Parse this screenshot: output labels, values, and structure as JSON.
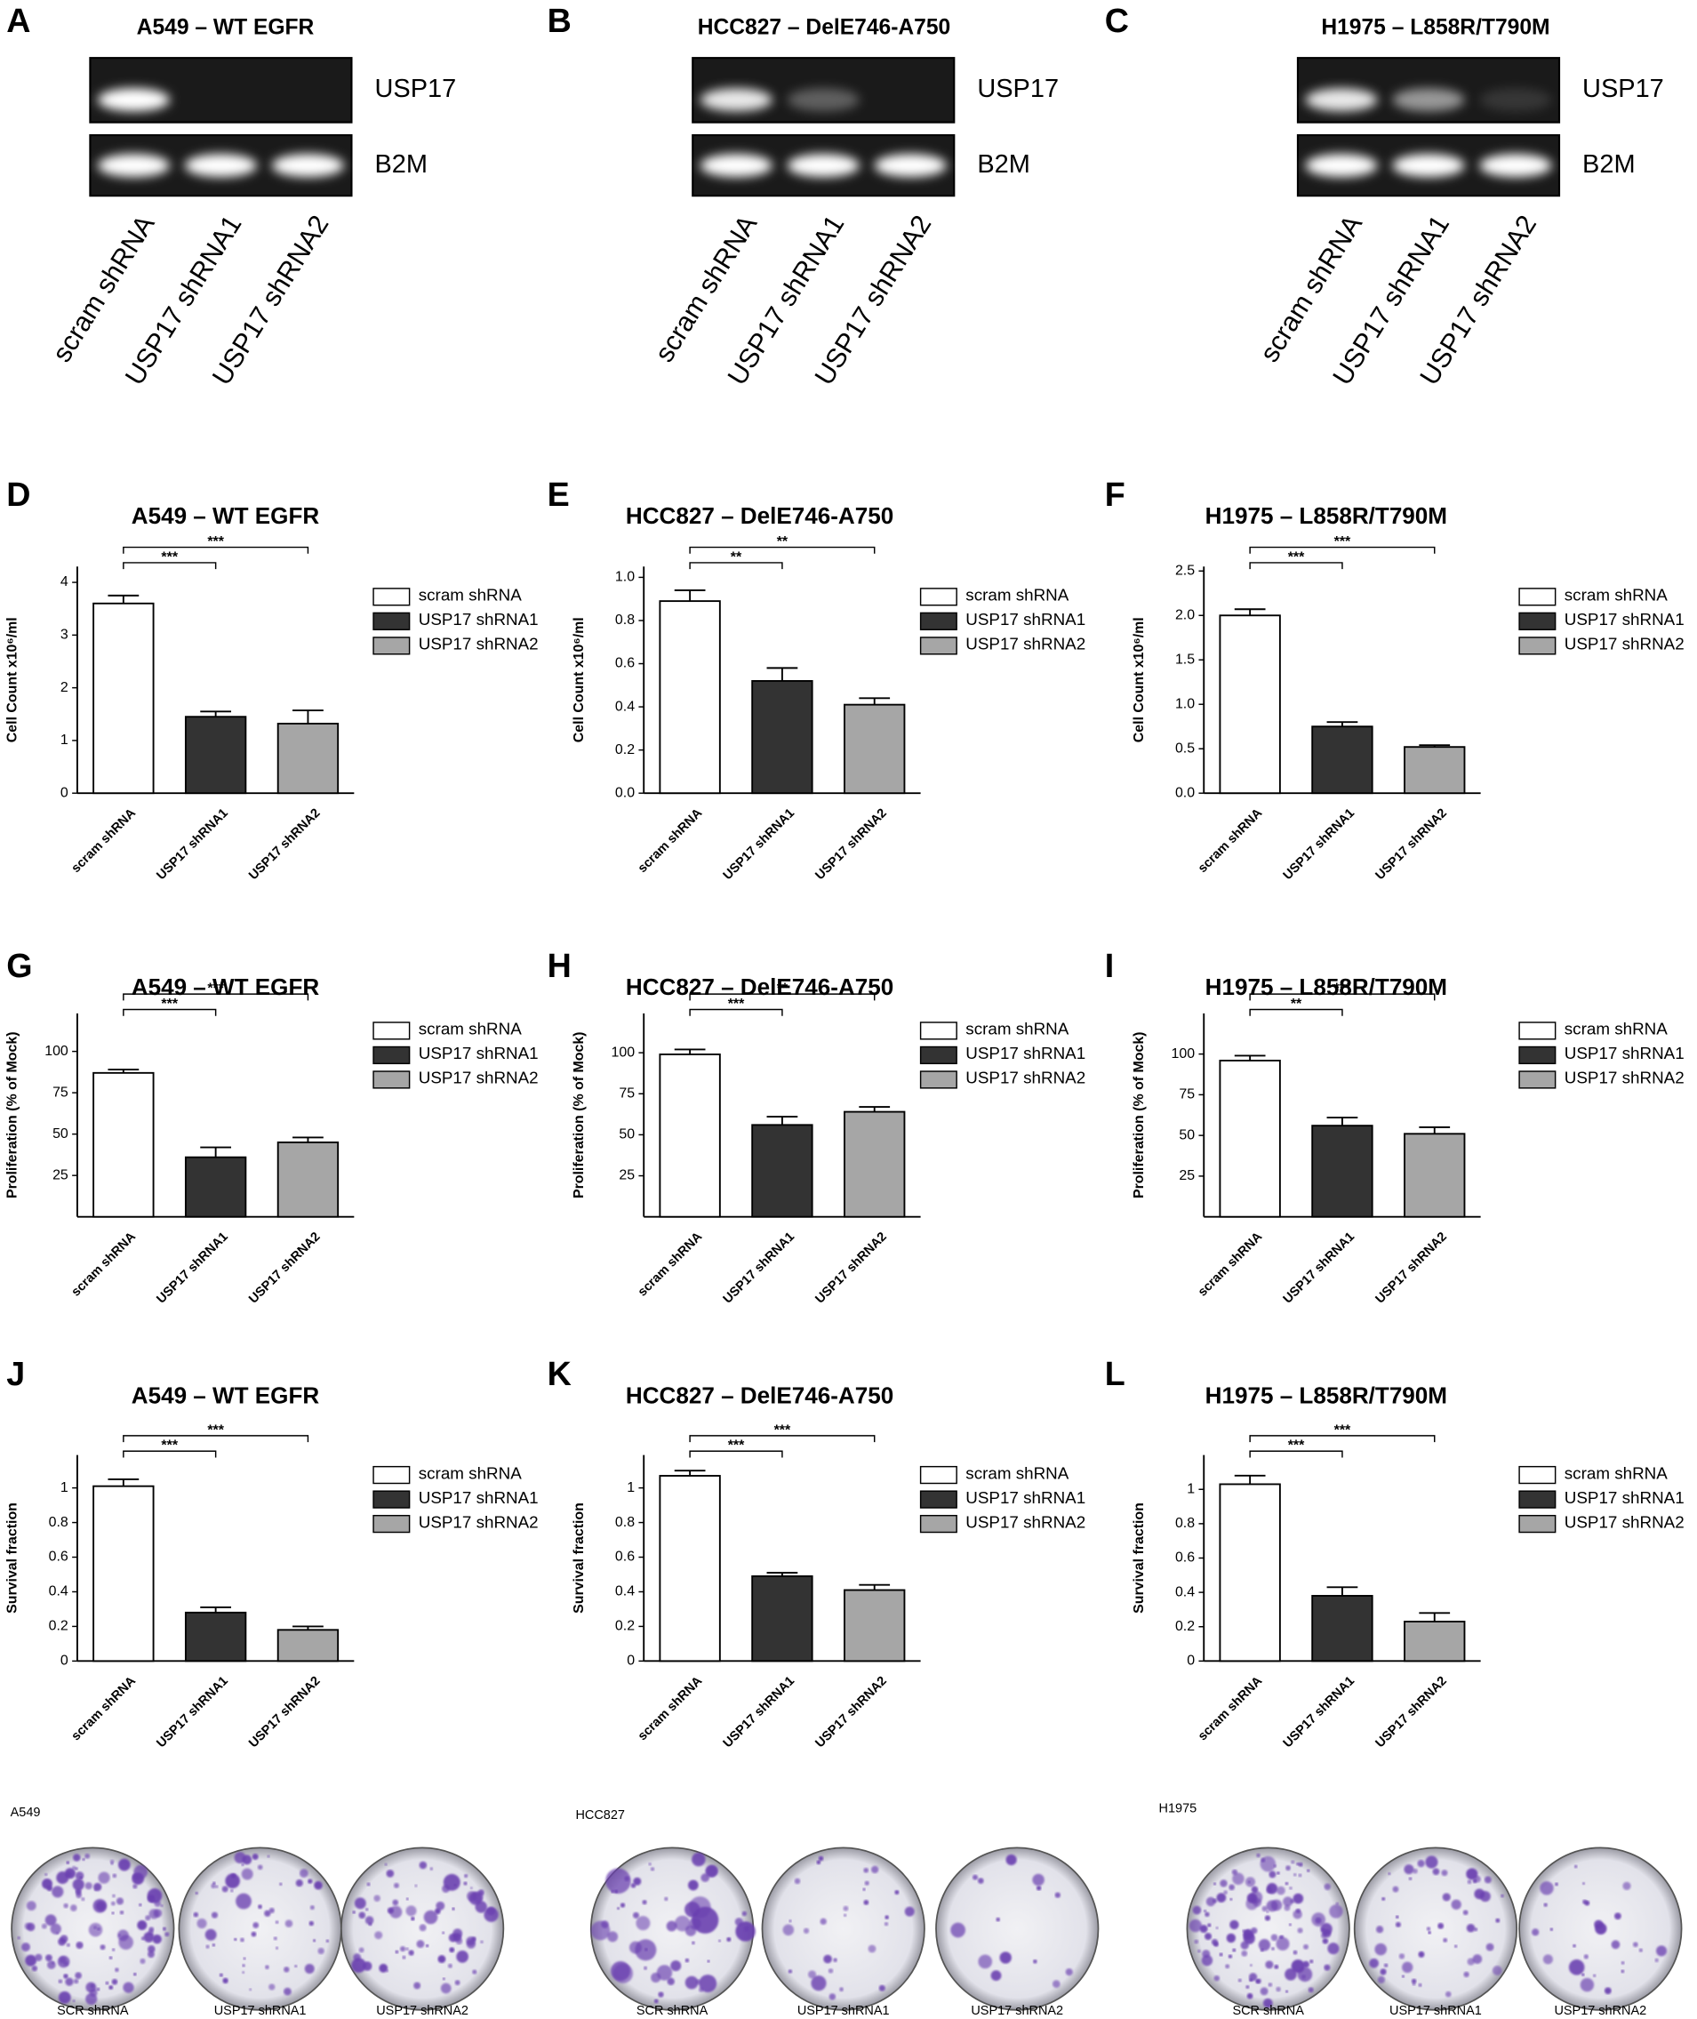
{
  "gels": [
    {
      "letter": "A",
      "title": "A549 – WT EGFR",
      "bands": [
        "USP17",
        "B2M"
      ],
      "lanes": [
        "scram shRNA",
        "USP17 shRNA1",
        "USP17 shRNA2"
      ]
    },
    {
      "letter": "B",
      "title": "HCC827 – DelE746-A750",
      "bands": [
        "USP17",
        "B2M"
      ],
      "lanes": [
        "scram shRNA",
        "USP17 shRNA1",
        "USP17 shRNA2"
      ]
    },
    {
      "letter": "C",
      "title": "H1975 – L858R/T790M",
      "bands": [
        "USP17",
        "B2M"
      ],
      "lanes": [
        "scram shRNA",
        "USP17 shRNA1",
        "USP17 shRNA2"
      ]
    }
  ],
  "chart_data": [
    {
      "letter": "D",
      "type": "bar",
      "title": "A549 – WT EGFR",
      "y_label": "Cell Count x10⁶/ml",
      "categories": [
        "scram shRNA",
        "USP17 shRNA1",
        "USP17 shRNA2"
      ],
      "values": [
        3.6,
        1.45,
        1.32
      ],
      "errors": [
        0.15,
        0.1,
        0.25
      ],
      "colors": [
        "#ffffff",
        "#333333",
        "#a6a6a6"
      ],
      "ylim": [
        0,
        4.3
      ],
      "yticks": [
        0,
        1,
        2,
        3,
        4
      ],
      "significance": [
        "***",
        "***"
      ]
    },
    {
      "letter": "E",
      "type": "bar",
      "title": "HCC827 – DelE746-A750",
      "y_label": "Cell Count x10⁶/ml",
      "categories": [
        "scram shRNA",
        "USP17 shRNA1",
        "USP17 shRNA2"
      ],
      "values": [
        0.89,
        0.52,
        0.41
      ],
      "errors": [
        0.05,
        0.06,
        0.03
      ],
      "colors": [
        "#ffffff",
        "#333333",
        "#a6a6a6"
      ],
      "ylim": [
        0,
        1.05
      ],
      "yticks": [
        {
          "value": 0,
          "label": "0.0"
        },
        0.2,
        0.4,
        0.6,
        0.8,
        {
          "value": 1,
          "label": "1.0"
        }
      ],
      "significance": [
        "**",
        "**"
      ]
    },
    {
      "letter": "F",
      "type": "bar",
      "title": "H1975 – L858R/T790M",
      "y_label": "Cell Count x10⁶/ml",
      "categories": [
        "scram shRNA",
        "USP17 shRNA1",
        "USP17 shRNA2"
      ],
      "values": [
        2.0,
        0.75,
        0.52
      ],
      "errors": [
        0.07,
        0.05,
        0.02
      ],
      "colors": [
        "#ffffff",
        "#333333",
        "#a6a6a6"
      ],
      "ylim": [
        0,
        2.55
      ],
      "yticks": [
        {
          "value": 0,
          "label": "0.0"
        },
        0.5,
        {
          "value": 1,
          "label": "1.0"
        },
        1.5,
        {
          "value": 2,
          "label": "2.0"
        },
        2.5
      ],
      "significance": [
        "***",
        "***"
      ]
    },
    {
      "letter": "G",
      "type": "bar",
      "title": "A549 – WT EGFR",
      "y_label": "Proliferation (% of  Mock)",
      "categories": [
        "scram shRNA",
        "USP17 shRNA1",
        "USP17 shRNA2"
      ],
      "values": [
        87,
        36,
        45
      ],
      "errors": [
        2,
        6,
        3
      ],
      "colors": [
        "#ffffff",
        "#333333",
        "#a6a6a6"
      ],
      "ylim": [
        0,
        123
      ],
      "yticks": [
        25,
        50,
        75,
        100
      ],
      "significance": [
        "***",
        "***"
      ]
    },
    {
      "letter": "H",
      "type": "bar",
      "title": "HCC827 – DelE746-A750",
      "y_label": "Proliferation (% of  Mock)",
      "categories": [
        "scram shRNA",
        "USP17 shRNA1",
        "USP17 shRNA2"
      ],
      "values": [
        99,
        56,
        64
      ],
      "errors": [
        3,
        5,
        3
      ],
      "colors": [
        "#ffffff",
        "#333333",
        "#a6a6a6"
      ],
      "ylim": [
        0,
        124
      ],
      "yticks": [
        25,
        50,
        75,
        100
      ],
      "significance": [
        "***",
        "**"
      ]
    },
    {
      "letter": "I",
      "type": "bar",
      "title": "H1975 – L858R/T790M",
      "y_label": "Proliferation (% of  Mock)",
      "categories": [
        "scram shRNA",
        "USP17 shRNA1",
        "USP17 shRNA2"
      ],
      "values": [
        96,
        56,
        51
      ],
      "errors": [
        3,
        5,
        4
      ],
      "colors": [
        "#ffffff",
        "#333333",
        "#a6a6a6"
      ],
      "ylim": [
        0,
        125
      ],
      "yticks": [
        25,
        50,
        75,
        100
      ],
      "significance": [
        "**",
        "***"
      ]
    },
    {
      "letter": "J",
      "type": "bar",
      "title": "A549 – WT EGFR",
      "y_label": "Survival fraction",
      "categories": [
        "scram shRNA",
        "USP17 shRNA1",
        "USP17 shRNA2"
      ],
      "values": [
        1.01,
        0.28,
        0.18
      ],
      "errors": [
        0.04,
        0.03,
        0.02
      ],
      "colors": [
        "#ffffff",
        "#333333",
        "#a6a6a6"
      ],
      "ylim": [
        0,
        1.19
      ],
      "yticks": [
        0,
        0.2,
        0.4,
        0.6,
        0.8,
        1
      ],
      "significance": [
        "***",
        "***"
      ]
    },
    {
      "letter": "K",
      "type": "bar",
      "title": "HCC827 – DelE746-A750",
      "y_label": "Survival fraction",
      "categories": [
        "scram shRNA",
        "USP17 shRNA1",
        "USP17 shRNA2"
      ],
      "values": [
        1.07,
        0.49,
        0.41
      ],
      "errors": [
        0.03,
        0.02,
        0.03
      ],
      "colors": [
        "#ffffff",
        "#333333",
        "#a6a6a6"
      ],
      "ylim": [
        0,
        1.19
      ],
      "yticks": [
        0,
        0.2,
        0.4,
        0.6,
        0.8,
        1
      ],
      "significance": [
        "***",
        "***"
      ]
    },
    {
      "letter": "L",
      "type": "bar",
      "title": "H1975 – L858R/T790M",
      "y_label": "Survival fraction",
      "categories": [
        "scram shRNA",
        "USP17 shRNA1",
        "USP17 shRNA2"
      ],
      "values": [
        1.03,
        0.38,
        0.23
      ],
      "errors": [
        0.05,
        0.05,
        0.05
      ],
      "colors": [
        "#ffffff",
        "#333333",
        "#a6a6a6"
      ],
      "ylim": [
        0,
        1.2
      ],
      "yticks": [
        0,
        0.2,
        0.4,
        0.6,
        0.8,
        1
      ],
      "significance": [
        "***",
        "***"
      ]
    }
  ],
  "colonies": [
    {
      "cell_line": "A549",
      "conditions": [
        "SCR shRNA",
        "USP17 shRNA1",
        "USP17 shRNA2"
      ]
    },
    {
      "cell_line": "HCC827",
      "conditions": [
        "SCR shRNA",
        "USP17 shRNA1",
        "USP17 shRNA2"
      ]
    },
    {
      "cell_line": "H1975",
      "conditions": [
        "SCR shRNA",
        "USP17 shRNA1",
        "USP17 shRNA2"
      ]
    }
  ]
}
